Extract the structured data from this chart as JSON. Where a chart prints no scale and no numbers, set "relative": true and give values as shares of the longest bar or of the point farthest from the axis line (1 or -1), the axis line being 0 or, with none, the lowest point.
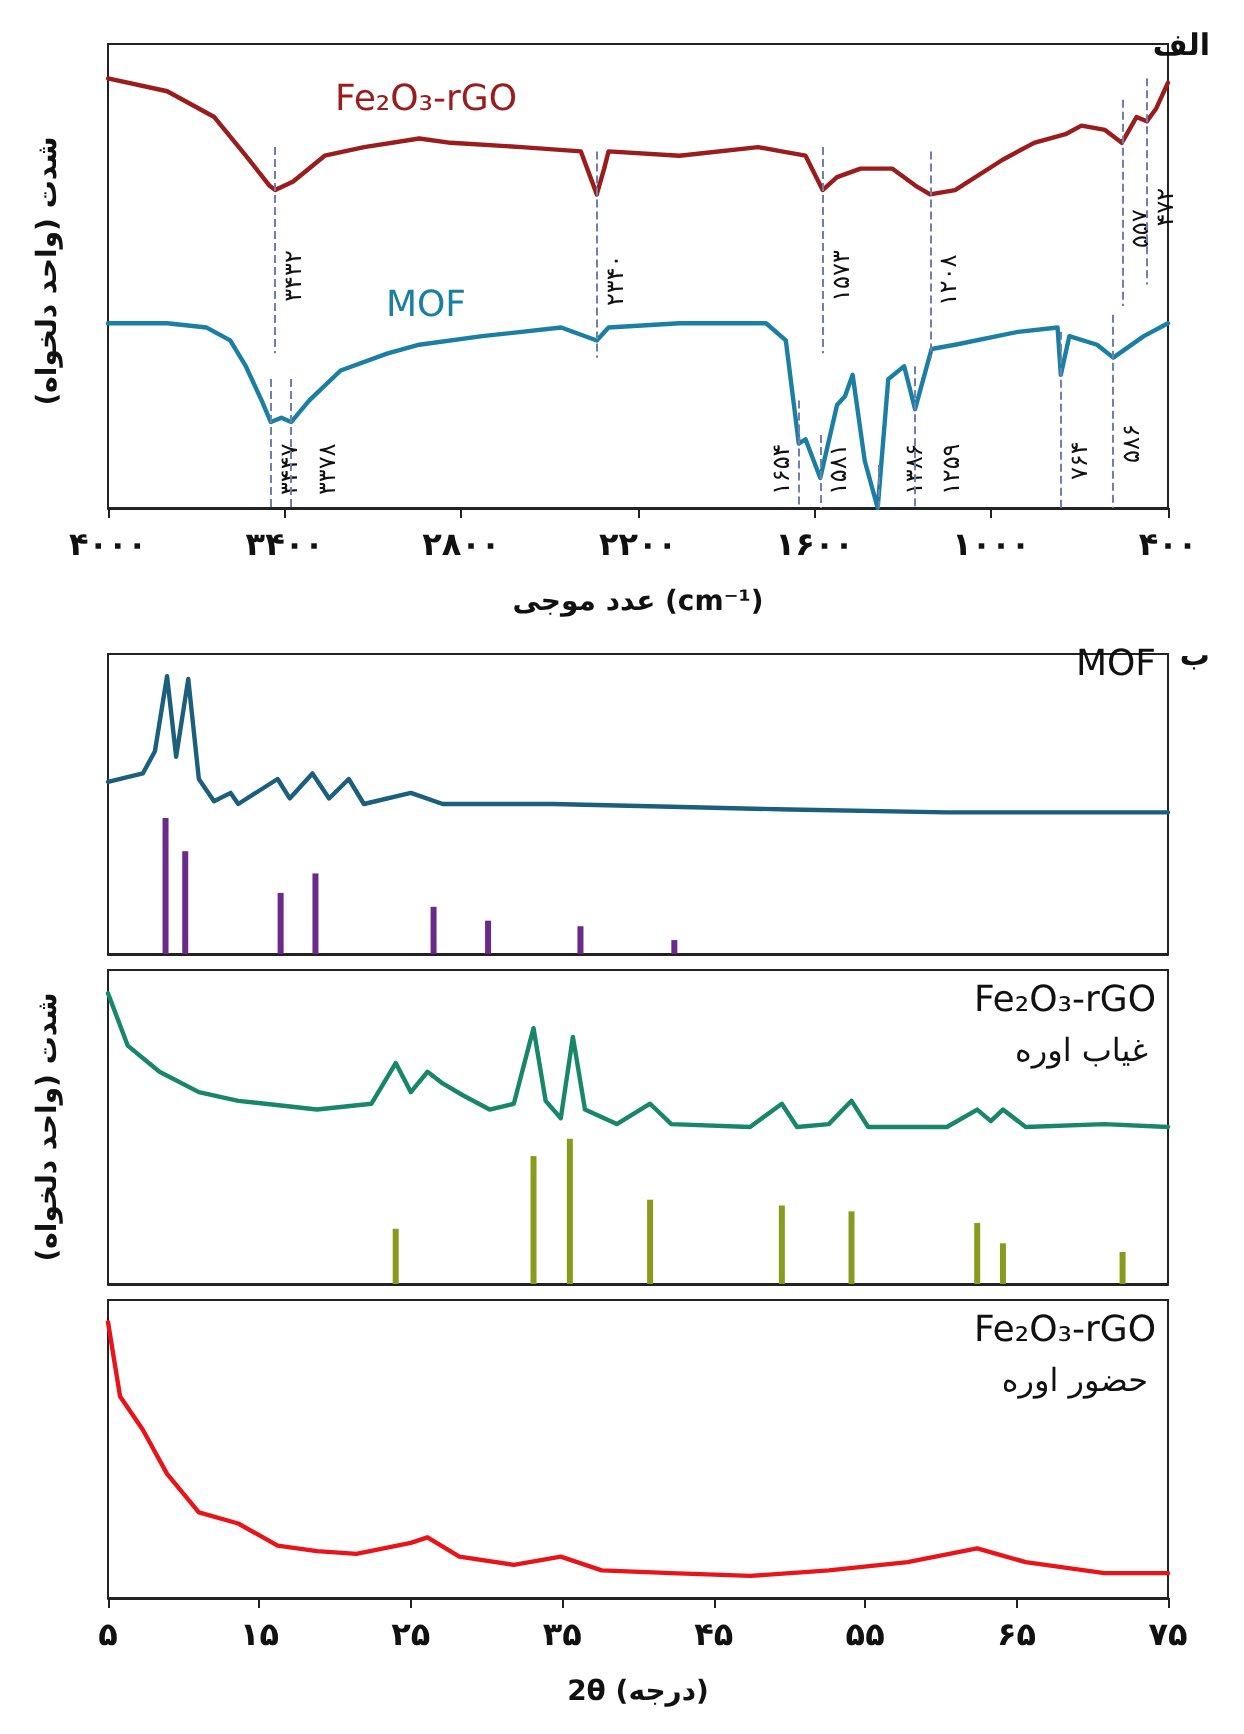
{
  "chart_data": [
    {
      "type": "line",
      "title": "الف",
      "xlabel": "عدد موجی (cm⁻¹)",
      "ylabel": "شدت (واحد دلخواه)",
      "relative": true,
      "tick_labels": "x",
      "grid": false,
      "legend": false,
      "line_style": "solid",
      "xlim": [
        4000,
        400
      ],
      "xticks": [
        {
          "value": 4000,
          "label": "۴۰۰۰"
        },
        {
          "value": 3400,
          "label": "۳۴۰۰"
        },
        {
          "value": 2800,
          "label": "۲۸۰۰"
        },
        {
          "value": 2200,
          "label": "۲۲۰۰"
        },
        {
          "value": 1600,
          "label": "۱۶۰۰"
        },
        {
          "value": 1000,
          "label": "۱۰۰۰"
        },
        {
          "value": 400,
          "label": "۴۰۰"
        }
      ],
      "series": [
        {
          "name": "Fe₂O₃-rGO",
          "color": "#9b1c1c",
          "x": [
            4000,
            3799,
            3639,
            3532,
            3451,
            3432,
            3371,
            3264,
            3130,
            2943,
            2836,
            2595,
            2394,
            2340,
            2315,
            2300,
            2059,
            1792,
            1712,
            1631,
            1573,
            1524,
            1444,
            1337,
            1257,
            1208,
            1123,
            963,
            855,
            748,
            694,
            614,
            557,
            507,
            472,
            440,
            400
          ],
          "values": [
            1.0,
            0.97,
            0.91,
            0.82,
            0.75,
            0.74,
            0.76,
            0.82,
            0.84,
            0.86,
            0.85,
            0.84,
            0.83,
            0.73,
            0.79,
            0.83,
            0.82,
            0.84,
            0.83,
            0.82,
            0.74,
            0.77,
            0.79,
            0.79,
            0.75,
            0.73,
            0.74,
            0.81,
            0.85,
            0.87,
            0.89,
            0.88,
            0.85,
            0.91,
            0.9,
            0.93,
            0.99
          ]
        },
        {
          "name": "MOF",
          "color": "#1a7fa3",
          "x": [
            4000,
            3799,
            3665,
            3585,
            3532,
            3478,
            3447,
            3411,
            3378,
            3317,
            3210,
            3050,
            2943,
            2729,
            2461,
            2340,
            2300,
            2059,
            1765,
            1698,
            1654,
            1631,
            1581,
            1524,
            1497,
            1471,
            1430,
            1386,
            1350,
            1296,
            1259,
            1203,
            1123,
            909,
            775,
            764,
            735,
            641,
            586,
            482,
            400
          ],
          "values": [
            0.43,
            0.43,
            0.42,
            0.39,
            0.33,
            0.25,
            0.2,
            0.21,
            0.2,
            0.25,
            0.32,
            0.36,
            0.38,
            0.4,
            0.42,
            0.39,
            0.42,
            0.43,
            0.43,
            0.39,
            0.15,
            0.16,
            0.07,
            0.24,
            0.26,
            0.31,
            0.11,
            0,
            0.3,
            0.33,
            0.23,
            0.37,
            0.38,
            0.41,
            0.42,
            0.31,
            0.4,
            0.38,
            0.35,
            0.4,
            0.43
          ]
        }
      ],
      "ref_lines": [
        {
          "axis": "x",
          "value": 3432,
          "label": "۳۴۳۲",
          "color": "#6f7fb0",
          "line_style": "dashed"
        },
        {
          "axis": "x",
          "value": 2340,
          "label": "۲۳۴۰",
          "color": "#6f7fb0",
          "line_style": "dashed"
        },
        {
          "axis": "x",
          "value": 1573,
          "label": "۱۵۷۳",
          "color": "#6f7fb0",
          "line_style": "dashed"
        },
        {
          "axis": "x",
          "value": 1208,
          "label": "۱۲۰۸",
          "color": "#6f7fb0",
          "line_style": "dashed"
        },
        {
          "axis": "x",
          "value": 557,
          "label": "۵۵۷",
          "color": "#6f7fb0",
          "line_style": "dashed"
        },
        {
          "axis": "x",
          "value": 472,
          "label": "۴۷۲",
          "color": "#6f7fb0",
          "line_style": "dashed"
        },
        {
          "axis": "x",
          "value": 3447,
          "label": "۳۴۴۷",
          "color": "#6f7fb0",
          "line_style": "dashed"
        },
        {
          "axis": "x",
          "value": 3378,
          "label": "۳۳۷۸",
          "color": "#6f7fb0",
          "line_style": "dashed"
        },
        {
          "axis": "x",
          "value": 1654,
          "label": "۱۶۵۴",
          "color": "#6f7fb0",
          "line_style": "dashed"
        },
        {
          "axis": "x",
          "value": 1581,
          "label": "۱۵۸۱",
          "color": "#6f7fb0",
          "line_style": "dashed"
        },
        {
          "axis": "x",
          "value": 1386,
          "label": "۱۳۸۶",
          "color": "#6f7fb0",
          "line_style": "dashed"
        },
        {
          "axis": "x",
          "value": 1259,
          "label": "۱۲۵۹",
          "color": "#6f7fb0",
          "line_style": "dashed"
        },
        {
          "axis": "x",
          "value": 764,
          "label": "۷۶۴",
          "color": "#6f7fb0",
          "line_style": "dashed"
        },
        {
          "axis": "x",
          "value": 586,
          "label": "۵۸۶",
          "color": "#6f7fb0",
          "line_style": "dashed"
        }
      ]
    },
    {
      "type": "line",
      "title": "ب",
      "relative": true,
      "tick_labels": false,
      "grid": false,
      "legend": false,
      "xlim": [
        5,
        75
      ],
      "series": [
        {
          "name": "MOF",
          "color": "#1b5f7d",
          "x": [
            5,
            7.3,
            8.1,
            8.9,
            9.5,
            10.3,
            11,
            12,
            13.1,
            13.6,
            16.2,
            17,
            18.5,
            19.6,
            20.9,
            21.9,
            25,
            27.1,
            30,
            34.4,
            42.2,
            50,
            60.4,
            75
          ],
          "values": [
            0.62,
            0.65,
            0.73,
            1,
            0.71,
            0.99,
            0.63,
            0.55,
            0.58,
            0.54,
            0.63,
            0.56,
            0.65,
            0.56,
            0.63,
            0.54,
            0.58,
            0.54,
            0.54,
            0.54,
            0.53,
            0.52,
            0.51,
            0.51
          ]
        },
        {
          "type": "bar",
          "color": "#6a2a8a",
          "x": [
            8.8,
            10.1,
            16.4,
            18.7,
            26.5,
            30.1,
            36.2,
            42.4
          ],
          "values": [
            0.49,
            0.37,
            0.22,
            0.29,
            0.17,
            0.12,
            0.1,
            0.05
          ]
        }
      ]
    },
    {
      "type": "line",
      "ylabel": "شدت (واحد دلخواه)",
      "relative": true,
      "tick_labels": false,
      "grid": false,
      "legend": false,
      "xlim": [
        5,
        75
      ],
      "annotations": [
        "غیاب اوره"
      ],
      "series": [
        {
          "name": "Fe₂O₃-rGO",
          "color": "#17866a",
          "x": [
            5,
            6.3,
            8.4,
            11,
            13.6,
            18.8,
            22.4,
            24,
            25,
            26.1,
            27.1,
            28.4,
            30.2,
            31.8,
            33.1,
            33.9,
            34.9,
            35.7,
            36.5,
            38.6,
            40.8,
            42.2,
            47.4,
            49.5,
            50.5,
            52.6,
            54.1,
            55.2,
            60.4,
            62.4,
            63.3,
            64.1,
            65.6,
            70.8,
            75
          ],
          "values": [
            1,
            0.82,
            0.73,
            0.66,
            0.63,
            0.6,
            0.62,
            0.76,
            0.66,
            0.73,
            0.69,
            0.65,
            0.6,
            0.62,
            0.88,
            0.63,
            0.57,
            0.85,
            0.6,
            0.55,
            0.62,
            0.55,
            0.54,
            0.62,
            0.54,
            0.55,
            0.63,
            0.54,
            0.54,
            0.6,
            0.56,
            0.6,
            0.54,
            0.55,
            0.54
          ]
        },
        {
          "type": "bar",
          "color": "#8a9a1e",
          "x": [
            24,
            33.1,
            35.5,
            40.8,
            49.5,
            54.1,
            62.4,
            64.1,
            72
          ],
          "values": [
            0.19,
            0.44,
            0.5,
            0.29,
            0.27,
            0.25,
            0.21,
            0.14,
            0.11
          ]
        }
      ]
    },
    {
      "type": "line",
      "xlabel": "2θ (درجه)",
      "relative": true,
      "tick_labels": "x",
      "grid": false,
      "legend": false,
      "xlim": [
        5,
        75
      ],
      "annotations": [
        "حضور اوره"
      ],
      "xticks": [
        {
          "value": 5,
          "label": "۵"
        },
        {
          "value": 15,
          "label": "۱۵"
        },
        {
          "value": 25,
          "label": "۲۵"
        },
        {
          "value": 35,
          "label": "۳۵"
        },
        {
          "value": 45,
          "label": "۴۵"
        },
        {
          "value": 55,
          "label": "۵۵"
        },
        {
          "value": 65,
          "label": "۶۵"
        },
        {
          "value": 75,
          "label": "۷۵"
        }
      ],
      "series": [
        {
          "name": "Fe₂O₃-rGO",
          "color": "#e8141a",
          "x": [
            5,
            5.8,
            7.3,
            8.9,
            11,
            13.6,
            16.2,
            18.8,
            21.4,
            25,
            26.1,
            28.2,
            31.8,
            34.9,
            37.6,
            42.2,
            47.4,
            52.6,
            57.8,
            62.4,
            65.6,
            70.8,
            75
          ],
          "values": [
            1,
            0.73,
            0.61,
            0.45,
            0.31,
            0.27,
            0.19,
            0.17,
            0.16,
            0.2,
            0.22,
            0.15,
            0.12,
            0.15,
            0.1,
            0.09,
            0.08,
            0.1,
            0.13,
            0.18,
            0.13,
            0.09,
            0.09
          ]
        }
      ]
    }
  ]
}
